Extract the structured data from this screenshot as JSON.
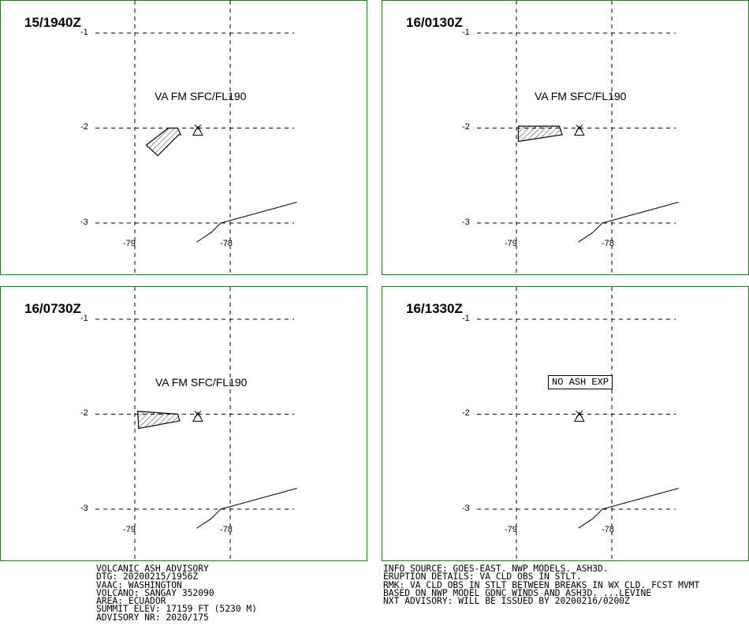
{
  "panels": [
    {
      "time": "15/1940Z",
      "label": "VA FM SFC/FL190",
      "boxed": false,
      "ash_polygon": [
        [
          -78.65,
          -2.0
        ],
        [
          -78.55,
          -2.0
        ],
        [
          -78.52,
          -2.07
        ],
        [
          -78.54,
          -2.07
        ],
        [
          -78.76,
          -2.29
        ],
        [
          -78.88,
          -2.18
        ]
      ]
    },
    {
      "time": "16/0130Z",
      "label": "VA FM SFC/FL190",
      "boxed": false,
      "ash_polygon": [
        [
          -78.98,
          -1.98
        ],
        [
          -78.55,
          -1.98
        ],
        [
          -78.52,
          -2.07
        ],
        [
          -78.98,
          -2.14
        ]
      ]
    },
    {
      "time": "16/0730Z",
      "label": "VA FM SFC/FL190",
      "boxed": false,
      "ash_polygon": [
        [
          -78.97,
          -1.97
        ],
        [
          -78.55,
          -2.0
        ],
        [
          -78.53,
          -2.07
        ],
        [
          -78.96,
          -2.15
        ]
      ]
    },
    {
      "time": "16/1330Z",
      "label": "NO ASH EXP",
      "boxed": true,
      "ash_polygon": []
    }
  ],
  "map": {
    "lat_ticks": [
      "-1",
      "-2",
      "-3"
    ],
    "lon_ticks": [
      "-79",
      "-78"
    ],
    "lat_values": [
      -1,
      -2,
      -3
    ],
    "lon_values": [
      -79,
      -78
    ],
    "volcano": {
      "name": "SANGAY",
      "lon": -78.34,
      "lat": -2.0
    },
    "coast_upper": [
      [
        -78.1,
        -3.0
      ],
      [
        -77.3,
        -2.78
      ]
    ],
    "coast_lower": [
      [
        -78.1,
        -3.0
      ],
      [
        -78.2,
        -3.1
      ],
      [
        -78.35,
        -3.2
      ]
    ]
  },
  "info_left": [
    "VOLCANIC ASH ADVISORY",
    "DTG: 20200215/1956Z",
    "VAAC: WASHINGTON",
    "VOLCANO: SANGAY 352090",
    "AREA: ECUADOR",
    "SUMMIT ELEV: 17159 FT (5230 M)",
    "ADVISORY NR: 2020/175"
  ],
  "info_right": [
    "INFO SOURCE: GOES-EAST. NWP MODELS. ASH3D.",
    "ERUPTION DETAILS: VA CLD OBS IN STLT.",
    "RMK: VA CLD OBS IN STLT BETWEEN BREAKS IN WX CLD. FCST MVMT",
    "BASED ON NWP MODEL GDNC WINDS AND ASH3D. ...LEVINE",
    "NXT ADVISORY: WILL BE ISSUED BY 20200216/0200Z"
  ]
}
